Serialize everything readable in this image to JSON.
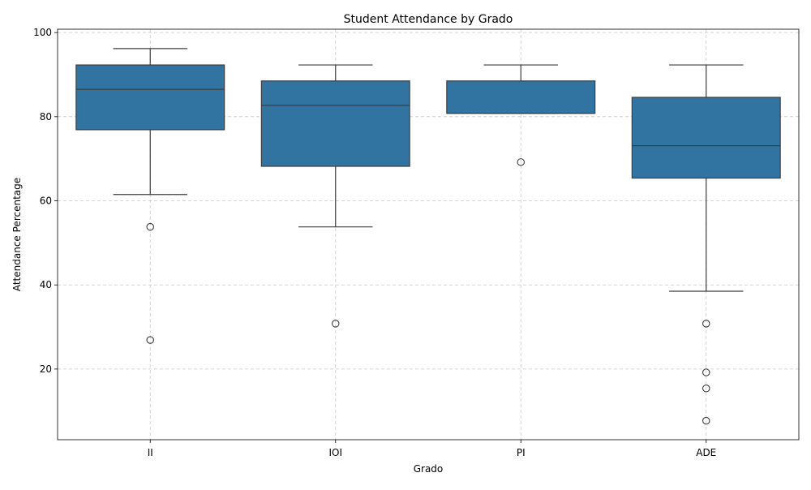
{
  "chart_data": {
    "type": "box",
    "title": "Student Attendance by Grado",
    "xlabel": "Grado",
    "ylabel": "Attendance Percentage",
    "ylim": [
      3.2,
      100.8
    ],
    "yticks": [
      20,
      40,
      60,
      80,
      100
    ],
    "grid": true,
    "box_color": "#3274a1",
    "line_color": "#3d3d3d",
    "grid_color": "#c8c8c8",
    "categories": [
      "II",
      "IOI",
      "PI",
      "ADE"
    ],
    "boxes": [
      {
        "category": "II",
        "whisker_low": 61.5,
        "q1": 76.9,
        "median": 86.5,
        "q3": 92.3,
        "whisker_high": 96.2,
        "outliers": [
          53.8,
          26.9
        ]
      },
      {
        "category": "IOI",
        "whisker_low": 53.8,
        "q1": 68.2,
        "median": 82.7,
        "q3": 88.5,
        "whisker_high": 92.3,
        "outliers": [
          30.8
        ]
      },
      {
        "category": "PI",
        "whisker_low": 80.8,
        "q1": 80.8,
        "median": 80.8,
        "q3": 88.5,
        "whisker_high": 92.3,
        "outliers": [
          69.2
        ]
      },
      {
        "category": "ADE",
        "whisker_low": 38.5,
        "q1": 65.4,
        "median": 73.1,
        "q3": 84.6,
        "whisker_high": 92.3,
        "outliers": [
          30.8,
          19.2,
          15.4,
          7.7
        ]
      }
    ]
  }
}
